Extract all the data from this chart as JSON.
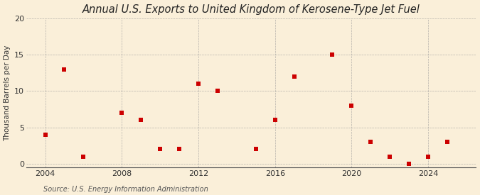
{
  "title": "Annual U.S. Exports to United Kingdom of Kerosene-Type Jet Fuel",
  "ylabel": "Thousand Barrels per Day",
  "source": "Source: U.S. Energy Information Administration",
  "background_color": "#faefd9",
  "marker_color": "#cc0000",
  "all_x": [
    2004,
    2005,
    2006,
    2008,
    2009,
    2010,
    2011,
    2012,
    2013,
    2015,
    2016,
    2017,
    2019,
    2020,
    2021,
    2022,
    2023,
    2024,
    2025
  ],
  "all_y": [
    4.0,
    13.0,
    1.0,
    7.0,
    6.0,
    2.0,
    2.0,
    11.0,
    10.0,
    2.0,
    6.0,
    12.0,
    15.0,
    8.0,
    3.0,
    1.0,
    0.0,
    1.0,
    3.0
  ],
  "xlim": [
    2003.0,
    2026.5
  ],
  "ylim": [
    -0.5,
    20
  ],
  "yticks": [
    0,
    5,
    10,
    15,
    20
  ],
  "xticks": [
    2004,
    2008,
    2012,
    2016,
    2020,
    2024
  ],
  "grid_color": "#999999",
  "title_fontsize": 10.5,
  "axis_label_fontsize": 7.5,
  "tick_fontsize": 8,
  "source_fontsize": 7
}
